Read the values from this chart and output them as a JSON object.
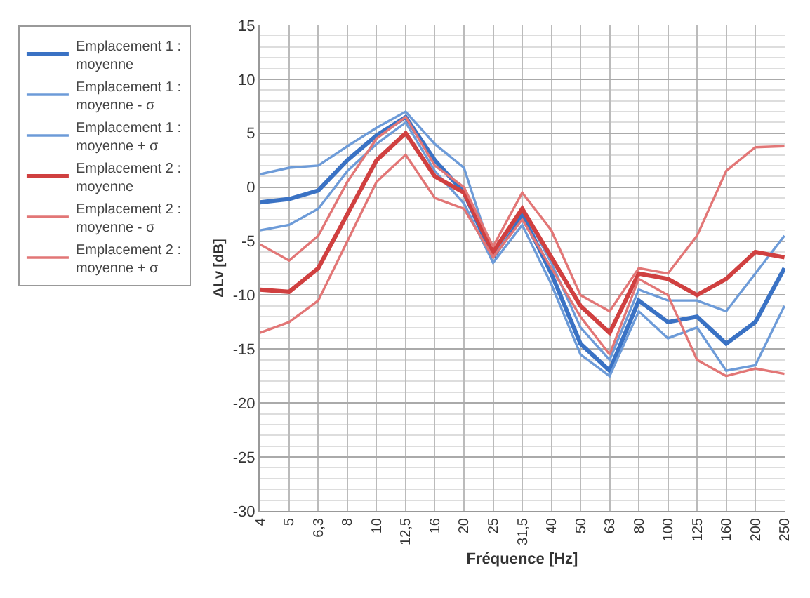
{
  "chart_data": {
    "type": "line",
    "xlabel": "Fréquence [Hz]",
    "ylabel": "ΔLv [dB]",
    "categories": [
      "4",
      "5",
      "6,3",
      "8",
      "10",
      "12,5",
      "16",
      "20",
      "25",
      "31,5",
      "40",
      "50",
      "63",
      "80",
      "100",
      "125",
      "160",
      "200",
      "250"
    ],
    "series": [
      {
        "name": "Emplacement 1 : moyenne",
        "color": "#3a72c4",
        "values": [
          -1.4,
          -1.1,
          -0.3,
          2.5,
          4.8,
          6.5,
          2.5,
          -0.5,
          -6.5,
          -2.5,
          -8,
          -14.5,
          -17,
          -10.5,
          -12.5,
          -12,
          -14.5,
          -12.5,
          -7.5
        ]
      },
      {
        "name": "Emplacement 1 : moyenne - σ",
        "color": "#6d9bd8",
        "values": [
          -4,
          -3.5,
          -2,
          1.5,
          4,
          6,
          1.5,
          -1.5,
          -7,
          -3.5,
          -9,
          -15.5,
          -17.5,
          -11.5,
          -14,
          -13,
          -17,
          -16.5,
          -11
        ]
      },
      {
        "name": "Emplacement 1 : moyenne + σ",
        "color": "#6d9bd8",
        "values": [
          1.2,
          1.8,
          2,
          3.8,
          5.5,
          7,
          4,
          1.8,
          -6.5,
          -2,
          -7,
          -13,
          -16,
          -9.5,
          -10.5,
          -10.5,
          -11.5,
          -8,
          -4.5
        ]
      },
      {
        "name": "Emplacement 2 : moyenne",
        "color": "#d04040",
        "values": [
          -9.5,
          -9.7,
          -7.5,
          -2.5,
          2.5,
          5,
          1,
          -0.5,
          -6,
          -2,
          -6.5,
          -11,
          -13.5,
          -8,
          -8.5,
          -10,
          -8.5,
          -6,
          -6.5
        ]
      },
      {
        "name": "Emplacement 2 : moyenne - σ",
        "color": "#e27676",
        "values": [
          -13.5,
          -12.5,
          -10.5,
          -5,
          0.5,
          3,
          -1,
          -2,
          -6.5,
          -3,
          -7.5,
          -12,
          -15.5,
          -8.5,
          -10,
          -16,
          -17.5,
          -16.8,
          -17.3
        ]
      },
      {
        "name": "Emplacement 2 : moyenne + σ",
        "color": "#e27676",
        "values": [
          -5.3,
          -6.8,
          -4.5,
          0.5,
          4.5,
          6.5,
          2,
          0,
          -5.5,
          -0.5,
          -4,
          -10,
          -11.5,
          -7.5,
          -8,
          -4.5,
          1.5,
          3.7,
          3.8
        ]
      }
    ],
    "ylim": [
      -30,
      15
    ],
    "yticks": [
      -30,
      -25,
      -20,
      -15,
      -10,
      -5,
      0,
      5,
      10,
      15
    ],
    "grid": true,
    "legend": "left",
    "marker": "none",
    "line_style": "solid"
  }
}
